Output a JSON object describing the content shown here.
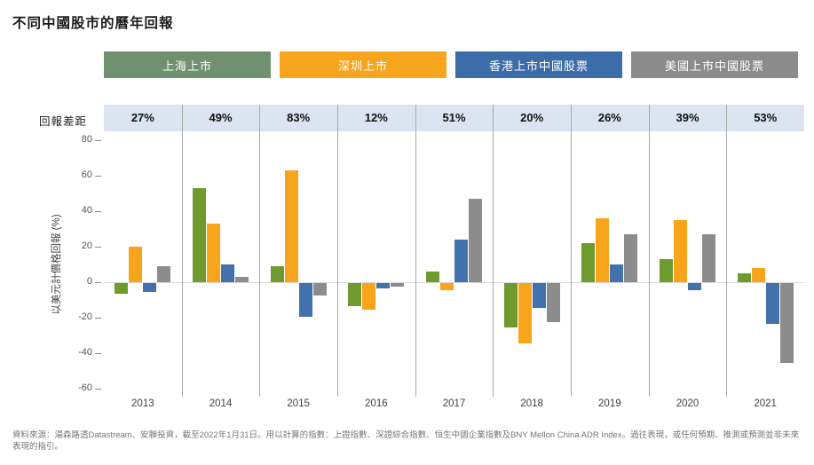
{
  "title": "不同中國股市的曆年回報",
  "legend": {
    "items": [
      {
        "label": "上海上市",
        "color": "#6f9170"
      },
      {
        "label": "深圳上市",
        "color": "#f7a51c"
      },
      {
        "label": "香港上市中國股票",
        "color": "#3d6da8"
      },
      {
        "label": "美國上市中國股票",
        "color": "#8b8b8b"
      }
    ]
  },
  "gap_row": {
    "label": "回報差距",
    "values": [
      "27%",
      "49%",
      "83%",
      "12%",
      "51%",
      "20%",
      "26%",
      "39%",
      "53%"
    ]
  },
  "chart_data": {
    "type": "bar",
    "title": "不同中國股市的曆年回報",
    "categories": [
      "2013",
      "2014",
      "2015",
      "2016",
      "2017",
      "2018",
      "2019",
      "2020",
      "2021"
    ],
    "series": [
      {
        "name": "上海上市",
        "color": "#6e9a2e",
        "values": [
          -6,
          53,
          9,
          -13,
          6,
          -25,
          22,
          13,
          5
        ]
      },
      {
        "name": "深圳上市",
        "color": "#f9a51b",
        "values": [
          20,
          33,
          63,
          -15,
          -4,
          -34,
          36,
          35,
          8
        ]
      },
      {
        "name": "香港上市中國股票",
        "color": "#4371ab",
        "values": [
          -5,
          10,
          -19,
          -3,
          24,
          -14,
          10,
          -4,
          -23
        ]
      },
      {
        "name": "美國上市中國股票",
        "color": "#8c8c8c",
        "values": [
          9,
          3,
          -7,
          -2,
          47,
          -22,
          27,
          27,
          -45
        ]
      }
    ],
    "ylabel": "以美元計價格回報 (%)",
    "ylim": [
      -60,
      80
    ],
    "yticks": [
      80,
      60,
      40,
      20,
      0,
      -20,
      -40,
      -60
    ],
    "grid": "vertical column separators and zero line only",
    "legend_position": "top",
    "annotations": {
      "return_gap_label": "回報差距",
      "return_gap_values": [
        "27%",
        "49%",
        "83%",
        "12%",
        "51%",
        "20%",
        "26%",
        "39%",
        "53%"
      ]
    }
  },
  "footer": {
    "source": "資料來源：湯森路透Datastream、安聯投資，截至2022年1月31日。用以計算的指數：上證指數、深證綜合指數、恒生中國企業指數及BNY Mellon China ADR Index。過往表現，或任何預期、推測或預測並非未來表現的指引。"
  }
}
